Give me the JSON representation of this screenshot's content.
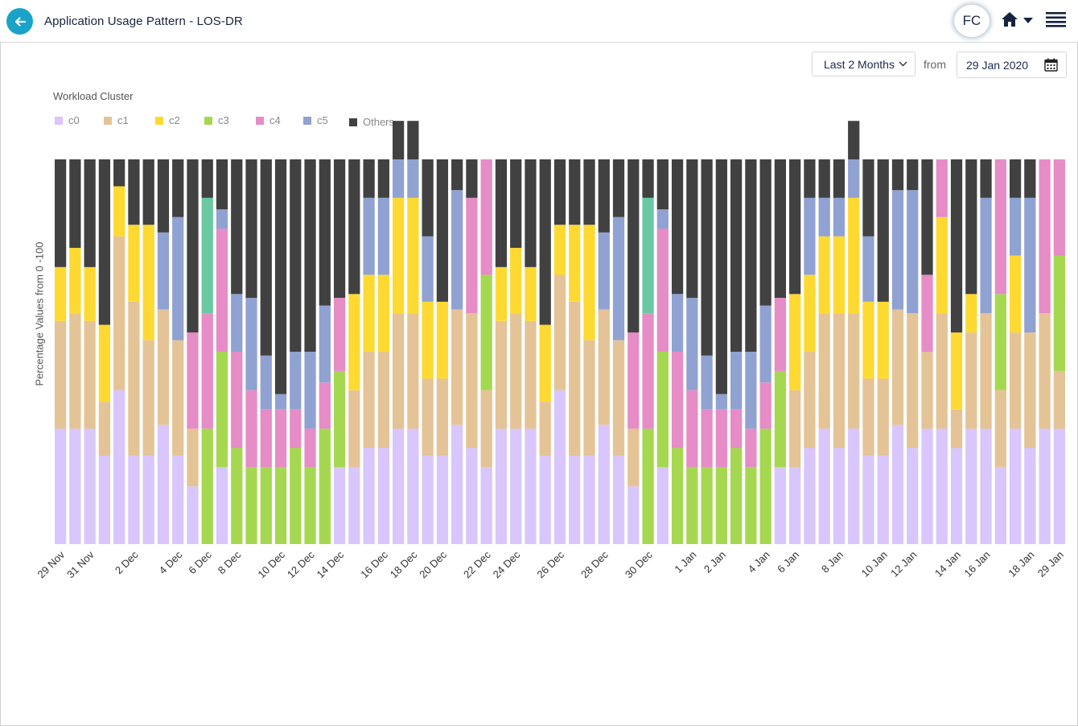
{
  "header": {
    "title_main": "Application Usage Pattern - ",
    "title_entity": "LOS-DR",
    "avatar_initials": "FC",
    "back_icon": "arrow-left-icon",
    "home_icon": "home-icon",
    "menu_icon": "hamburger-menu-icon"
  },
  "controls": {
    "range_label": "Last 2 Months",
    "from_label": "from",
    "date_value": "29 Jan 2020",
    "calendar_icon": "calendar-icon"
  },
  "legend": {
    "title": "Workload Cluster",
    "items": [
      {
        "label": "c0",
        "color": "#d8c6fc"
      },
      {
        "label": "c1",
        "color": "#e4c396"
      },
      {
        "label": "c2",
        "color": "#fed932"
      },
      {
        "label": "c3",
        "color": "#a5d850"
      },
      {
        "label": "c4",
        "color": "#e68cc6"
      },
      {
        "label": "c5",
        "color": "#90a2d2"
      },
      {
        "label": "Others",
        "color": "#414141"
      }
    ]
  },
  "chart_data": {
    "type": "bar",
    "stacked": true,
    "ylabel": "Percentage Values from 0 -100",
    "ylim": [
      0,
      100
    ],
    "grid": false,
    "legend_position": "top-left",
    "x_tick_labels": [
      "29 Nov",
      "31 Nov",
      "2 Dec",
      "4 Dec",
      "6 Dec",
      "8 Dec",
      "10 Dec",
      "12 Dec",
      "14 Dec",
      "16 Dec",
      "18 Dec",
      "20 Dec",
      "22 Dec",
      "24 Dec",
      "26 Dec",
      "28 Dec",
      "30 Dec",
      "1 Jan",
      "2 Jan",
      "4 Jan",
      "6 Jan",
      "8 Jan",
      "10 Jan",
      "12 Jan",
      "14 Jan",
      "16 Jan",
      "18 Jan",
      "29 Jan"
    ],
    "x_tick_bar_index": [
      0,
      2,
      5,
      8,
      10,
      12,
      15,
      17,
      19,
      22,
      24,
      26,
      29,
      31,
      34,
      37,
      40,
      43,
      45,
      48,
      50,
      53,
      56,
      58,
      61,
      63,
      66,
      68
    ],
    "series_colors": {
      "c0": "#d8c6fc",
      "c1": "#e4c396",
      "c2": "#fed932",
      "c3": "#a5d850",
      "c4": "#e68cc6",
      "c5": "#90a2d2",
      "teal": "#68c9a2",
      "Others": "#414141"
    },
    "bars": [
      [
        [
          "c0",
          30
        ],
        [
          "c1",
          28
        ],
        [
          "c2",
          14
        ],
        [
          "Others",
          28
        ]
      ],
      [
        [
          "c0",
          30
        ],
        [
          "c1",
          30
        ],
        [
          "c2",
          17
        ],
        [
          "Others",
          23
        ]
      ],
      [
        [
          "c0",
          30
        ],
        [
          "c1",
          28
        ],
        [
          "c2",
          14
        ],
        [
          "Others",
          28
        ]
      ],
      [
        [
          "c0",
          23
        ],
        [
          "c1",
          14
        ],
        [
          "c2",
          20
        ],
        [
          "Others",
          43
        ]
      ],
      [
        [
          "c0",
          40
        ],
        [
          "c1",
          40
        ],
        [
          "c2",
          13
        ],
        [
          "Others",
          7
        ]
      ],
      [
        [
          "c0",
          23
        ],
        [
          "c1",
          40
        ],
        [
          "c2",
          20
        ],
        [
          "Others",
          17
        ]
      ],
      [
        [
          "c0",
          23
        ],
        [
          "c1",
          30
        ],
        [
          "c2",
          30
        ],
        [
          "Others",
          17
        ]
      ],
      [
        [
          "c0",
          31
        ],
        [
          "c1",
          30
        ],
        [
          "c5",
          20
        ],
        [
          "Others",
          19
        ]
      ],
      [
        [
          "c0",
          23
        ],
        [
          "c1",
          30
        ],
        [
          "c5",
          32
        ],
        [
          "Others",
          15
        ]
      ],
      [
        [
          "c0",
          15
        ],
        [
          "c1",
          15
        ],
        [
          "c4",
          25
        ],
        [
          "Others",
          45
        ]
      ],
      [
        [
          "c3",
          30
        ],
        [
          "c4",
          30
        ],
        [
          "teal",
          30
        ],
        [
          "Others",
          10
        ]
      ],
      [
        [
          "c0",
          20
        ],
        [
          "c3",
          30
        ],
        [
          "c4",
          32
        ],
        [
          "c5",
          5
        ],
        [
          "Others",
          13
        ]
      ],
      [
        [
          "c3",
          25
        ],
        [
          "c4",
          25
        ],
        [
          "c5",
          15
        ],
        [
          "Others",
          35
        ]
      ],
      [
        [
          "c3",
          20
        ],
        [
          "c4",
          20
        ],
        [
          "c5",
          24
        ],
        [
          "Others",
          36
        ]
      ],
      [
        [
          "c3",
          20
        ],
        [
          "c4",
          15
        ],
        [
          "c5",
          14
        ],
        [
          "Others",
          51
        ]
      ],
      [
        [
          "c3",
          20
        ],
        [
          "c4",
          15
        ],
        [
          "c5",
          4
        ],
        [
          "Others",
          61
        ]
      ],
      [
        [
          "c3",
          25
        ],
        [
          "c4",
          10
        ],
        [
          "c5",
          15
        ],
        [
          "Others",
          50
        ]
      ],
      [
        [
          "c3",
          20
        ],
        [
          "c4",
          10
        ],
        [
          "c5",
          20
        ],
        [
          "Others",
          50
        ]
      ],
      [
        [
          "c3",
          30
        ],
        [
          "c4",
          12
        ],
        [
          "c5",
          20
        ],
        [
          "Others",
          38
        ]
      ],
      [
        [
          "c0",
          20
        ],
        [
          "c3",
          25
        ],
        [
          "c4",
          19
        ],
        [
          "Others",
          36
        ]
      ],
      [
        [
          "c0",
          20
        ],
        [
          "c1",
          20
        ],
        [
          "c2",
          25
        ],
        [
          "Others",
          35
        ]
      ],
      [
        [
          "c0",
          25
        ],
        [
          "c1",
          25
        ],
        [
          "c2",
          20
        ],
        [
          "c5",
          20
        ],
        [
          "Others",
          10
        ]
      ],
      [
        [
          "c0",
          25
        ],
        [
          "c1",
          25
        ],
        [
          "c2",
          20
        ],
        [
          "c5",
          20
        ],
        [
          "Others",
          10
        ]
      ],
      [
        [
          "c0",
          30
        ],
        [
          "c1",
          30
        ],
        [
          "c2",
          30
        ],
        [
          "c5",
          10
        ],
        [
          "Others",
          10
        ]
      ],
      [
        [
          "c0",
          30
        ],
        [
          "c1",
          30
        ],
        [
          "c2",
          30
        ],
        [
          "c5",
          10
        ],
        [
          "Others",
          10
        ]
      ],
      [
        [
          "c0",
          23
        ],
        [
          "c1",
          20
        ],
        [
          "c2",
          20
        ],
        [
          "c5",
          17
        ],
        [
          "Others",
          20
        ]
      ],
      [
        [
          "c0",
          23
        ],
        [
          "c1",
          20
        ],
        [
          "c2",
          20
        ],
        [
          "Others",
          37
        ]
      ],
      [
        [
          "c0",
          31
        ],
        [
          "c1",
          30
        ],
        [
          "c5",
          31
        ],
        [
          "Others",
          8
        ]
      ],
      [
        [
          "c0",
          25
        ],
        [
          "c1",
          35
        ],
        [
          "c4",
          30
        ],
        [
          "Others",
          10
        ]
      ],
      [
        [
          "c0",
          20
        ],
        [
          "c1",
          20
        ],
        [
          "c3",
          30
        ],
        [
          "c4",
          30
        ]
      ],
      [
        [
          "c0",
          30
        ],
        [
          "c1",
          28
        ],
        [
          "c2",
          14
        ],
        [
          "Others",
          28
        ]
      ],
      [
        [
          "c0",
          30
        ],
        [
          "c1",
          30
        ],
        [
          "c2",
          17
        ],
        [
          "Others",
          23
        ]
      ],
      [
        [
          "c0",
          30
        ],
        [
          "c1",
          28
        ],
        [
          "c2",
          14
        ],
        [
          "Others",
          28
        ]
      ],
      [
        [
          "c0",
          23
        ],
        [
          "c1",
          14
        ],
        [
          "c2",
          20
        ],
        [
          "Others",
          43
        ]
      ],
      [
        [
          "c0",
          40
        ],
        [
          "c1",
          30
        ],
        [
          "c2",
          13
        ],
        [
          "Others",
          17
        ]
      ],
      [
        [
          "c0",
          23
        ],
        [
          "c1",
          40
        ],
        [
          "c2",
          20
        ],
        [
          "Others",
          17
        ]
      ],
      [
        [
          "c0",
          23
        ],
        [
          "c1",
          30
        ],
        [
          "c2",
          30
        ],
        [
          "Others",
          17
        ]
      ],
      [
        [
          "c0",
          31
        ],
        [
          "c1",
          30
        ],
        [
          "c5",
          20
        ],
        [
          "Others",
          19
        ]
      ],
      [
        [
          "c0",
          23
        ],
        [
          "c1",
          30
        ],
        [
          "c5",
          32
        ],
        [
          "Others",
          15
        ]
      ],
      [
        [
          "c0",
          15
        ],
        [
          "c1",
          15
        ],
        [
          "c4",
          25
        ],
        [
          "Others",
          45
        ]
      ],
      [
        [
          "c3",
          30
        ],
        [
          "c4",
          30
        ],
        [
          "teal",
          30
        ],
        [
          "Others",
          10
        ]
      ],
      [
        [
          "c0",
          20
        ],
        [
          "c3",
          30
        ],
        [
          "c4",
          32
        ],
        [
          "c5",
          5
        ],
        [
          "Others",
          13
        ]
      ],
      [
        [
          "c3",
          25
        ],
        [
          "c4",
          25
        ],
        [
          "c5",
          15
        ],
        [
          "Others",
          35
        ]
      ],
      [
        [
          "c3",
          20
        ],
        [
          "c4",
          20
        ],
        [
          "c5",
          24
        ],
        [
          "Others",
          36
        ]
      ],
      [
        [
          "c3",
          20
        ],
        [
          "c4",
          15
        ],
        [
          "c5",
          14
        ],
        [
          "Others",
          51
        ]
      ],
      [
        [
          "c3",
          20
        ],
        [
          "c4",
          15
        ],
        [
          "c5",
          4
        ],
        [
          "Others",
          61
        ]
      ],
      [
        [
          "c3",
          25
        ],
        [
          "c4",
          10
        ],
        [
          "c5",
          15
        ],
        [
          "Others",
          50
        ]
      ],
      [
        [
          "c3",
          20
        ],
        [
          "c4",
          10
        ],
        [
          "c5",
          20
        ],
        [
          "Others",
          50
        ]
      ],
      [
        [
          "c3",
          30
        ],
        [
          "c4",
          12
        ],
        [
          "c5",
          20
        ],
        [
          "Others",
          38
        ]
      ],
      [
        [
          "c0",
          20
        ],
        [
          "c3",
          25
        ],
        [
          "c4",
          19
        ],
        [
          "Others",
          36
        ]
      ],
      [
        [
          "c0",
          20
        ],
        [
          "c1",
          20
        ],
        [
          "c2",
          25
        ],
        [
          "Others",
          35
        ]
      ],
      [
        [
          "c0",
          25
        ],
        [
          "c1",
          25
        ],
        [
          "c2",
          20
        ],
        [
          "c5",
          20
        ],
        [
          "Others",
          10
        ]
      ],
      [
        [
          "c0",
          30
        ],
        [
          "c1",
          30
        ],
        [
          "c2",
          20
        ],
        [
          "c5",
          10
        ],
        [
          "Others",
          10
        ]
      ],
      [
        [
          "c0",
          25
        ],
        [
          "c1",
          35
        ],
        [
          "c2",
          20
        ],
        [
          "c5",
          10
        ],
        [
          "Others",
          10
        ]
      ],
      [
        [
          "c0",
          30
        ],
        [
          "c1",
          30
        ],
        [
          "c2",
          30
        ],
        [
          "c5",
          10
        ],
        [
          "Others",
          10
        ]
      ],
      [
        [
          "c0",
          23
        ],
        [
          "c1",
          20
        ],
        [
          "c2",
          20
        ],
        [
          "c5",
          17
        ],
        [
          "Others",
          20
        ]
      ],
      [
        [
          "c0",
          23
        ],
        [
          "c1",
          20
        ],
        [
          "c2",
          20
        ],
        [
          "Others",
          37
        ]
      ],
      [
        [
          "c0",
          31
        ],
        [
          "c1",
          30
        ],
        [
          "c5",
          31
        ],
        [
          "Others",
          8
        ]
      ],
      [
        [
          "c0",
          25
        ],
        [
          "c1",
          35
        ],
        [
          "c5",
          32
        ],
        [
          "Others",
          8
        ]
      ],
      [
        [
          "c0",
          30
        ],
        [
          "c1",
          20
        ],
        [
          "c4",
          20
        ],
        [
          "Others",
          30
        ]
      ],
      [
        [
          "c0",
          30
        ],
        [
          "c1",
          30
        ],
        [
          "c2",
          25
        ],
        [
          "c4",
          15
        ]
      ],
      [
        [
          "c0",
          25
        ],
        [
          "c1",
          10
        ],
        [
          "c2",
          20
        ],
        [
          "Others",
          45
        ]
      ],
      [
        [
          "c0",
          30
        ],
        [
          "c1",
          25
        ],
        [
          "c2",
          10
        ],
        [
          "Others",
          35
        ]
      ],
      [
        [
          "c0",
          30
        ],
        [
          "c1",
          30
        ],
        [
          "c5",
          30
        ],
        [
          "Others",
          10
        ]
      ],
      [
        [
          "c0",
          20
        ],
        [
          "c1",
          20
        ],
        [
          "c3",
          25
        ],
        [
          "c4",
          35
        ]
      ],
      [
        [
          "c0",
          30
        ],
        [
          "c1",
          25
        ],
        [
          "c2",
          20
        ],
        [
          "c5",
          15
        ],
        [
          "Others",
          10
        ]
      ],
      [
        [
          "c0",
          25
        ],
        [
          "c1",
          30
        ],
        [
          "c5",
          35
        ],
        [
          "Others",
          10
        ]
      ],
      [
        [
          "c0",
          30
        ],
        [
          "c1",
          30
        ],
        [
          "c4",
          40
        ]
      ],
      [
        [
          "c0",
          30
        ],
        [
          "c1",
          15
        ],
        [
          "c3",
          30
        ],
        [
          "c4",
          25
        ]
      ]
    ]
  }
}
